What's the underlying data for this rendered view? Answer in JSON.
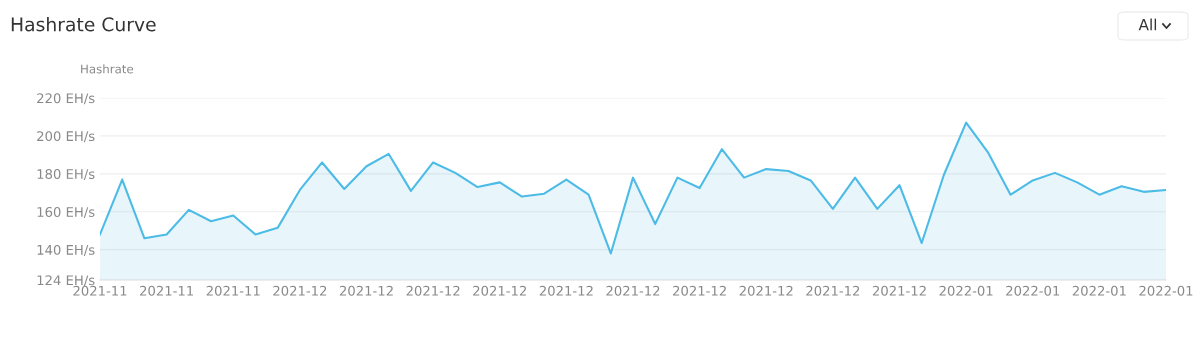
{
  "chart_data": {
    "type": "area",
    "title": "Hashrate Curve",
    "ylabel": "Hashrate",
    "annotations": [
      "All"
    ],
    "categories": [
      "2021-11",
      null,
      null,
      "2021-11",
      null,
      null,
      "2021-11",
      null,
      null,
      "2021-12",
      null,
      null,
      "2021-12",
      null,
      null,
      "2021-12",
      null,
      null,
      "2021-12",
      null,
      null,
      "2021-12",
      null,
      null,
      "2021-12",
      null,
      null,
      "2021-12",
      null,
      null,
      "2021-12",
      null,
      null,
      "2021-12",
      null,
      null,
      "2021-12",
      null,
      null,
      "2022-01",
      null,
      null,
      "2022-01",
      null,
      null,
      "2022-01",
      null,
      null,
      "2022-01"
    ],
    "series": [
      {
        "color": "#4cbbe6",
        "values": [
          148,
          177,
          146,
          148,
          161,
          155,
          158,
          148,
          151.5,
          171.5,
          186,
          172,
          184,
          190.5,
          171,
          186,
          180.5,
          173,
          175.5,
          168,
          169.5,
          177,
          169,
          138,
          178,
          153.5,
          178,
          172.5,
          193,
          178,
          182.5,
          181.5,
          176.5,
          161.5,
          178,
          161.5,
          174,
          143.5,
          179.5,
          207,
          191,
          169,
          176.5,
          180.5,
          175.5,
          169,
          173.5,
          170.5,
          171.5
        ]
      }
    ],
    "ylim": [
      124,
      220
    ],
    "yticks": [
      {
        "value": 124,
        "label": "124 EH/s"
      },
      {
        "value": 140,
        "label": "140 EH/s"
      },
      {
        "value": 160,
        "label": "160 EH/s"
      },
      {
        "value": 180,
        "label": "180 EH/s"
      },
      {
        "value": 200,
        "label": "200 EH/s"
      },
      {
        "value": 220,
        "label": "220 EH/s"
      }
    ],
    "grid": "y"
  }
}
